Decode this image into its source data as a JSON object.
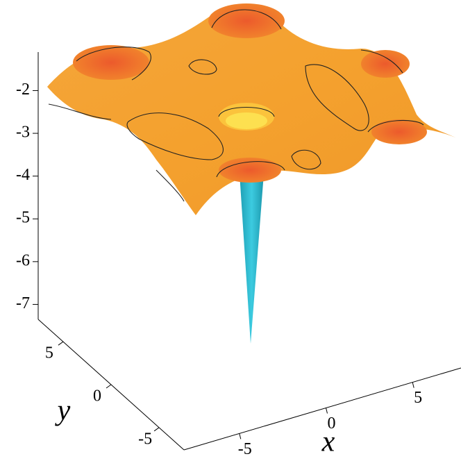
{
  "chart_data": {
    "type": "surface",
    "x_label": "x",
    "y_label": "y",
    "xlim": [
      -8.2,
      7.8
    ],
    "xticks": [
      -5,
      0,
      5
    ],
    "ylim": [
      7.6,
      -7.6
    ],
    "yticks": [
      5,
      0,
      -5
    ],
    "zlim": [
      -1.1,
      -7.35
    ],
    "zticks": [
      -2,
      -3,
      -4,
      -5,
      -6,
      -7
    ]
  }
}
